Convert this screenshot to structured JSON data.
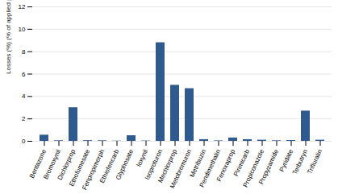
{
  "chart_data": {
    "type": "bar",
    "categories": [
      "Bentazone",
      "Bromoxynil",
      "Dichlorprop",
      "Ethofumesate",
      "Fenpropimorph",
      "Ethiofencarb",
      "Glyphosate",
      "Ioxynil",
      "Isoproturon",
      "Mechlorprop",
      "Metobromuron",
      "Metribuzin",
      "Pendimethalin",
      "Fenoxaprop",
      "Pirimicarb",
      "Propiconazole",
      "Propyzamide",
      "Pyridate",
      "Terbutryn",
      "Trifluralin"
    ],
    "values": [
      0.55,
      0.05,
      3.0,
      0.06,
      0.05,
      0.02,
      0.5,
      0.03,
      8.8,
      5.0,
      4.7,
      0.15,
      0.04,
      0.3,
      0.15,
      0.1,
      0.05,
      0.07,
      2.7,
      0.1
    ],
    "color": "#2e5a8e",
    "ylabel": "Losses (%) (% of applied pesticide)",
    "ylim": [
      0,
      12
    ],
    "yticks": [
      0,
      2,
      4,
      6,
      8,
      10,
      12
    ],
    "grid": true
  }
}
